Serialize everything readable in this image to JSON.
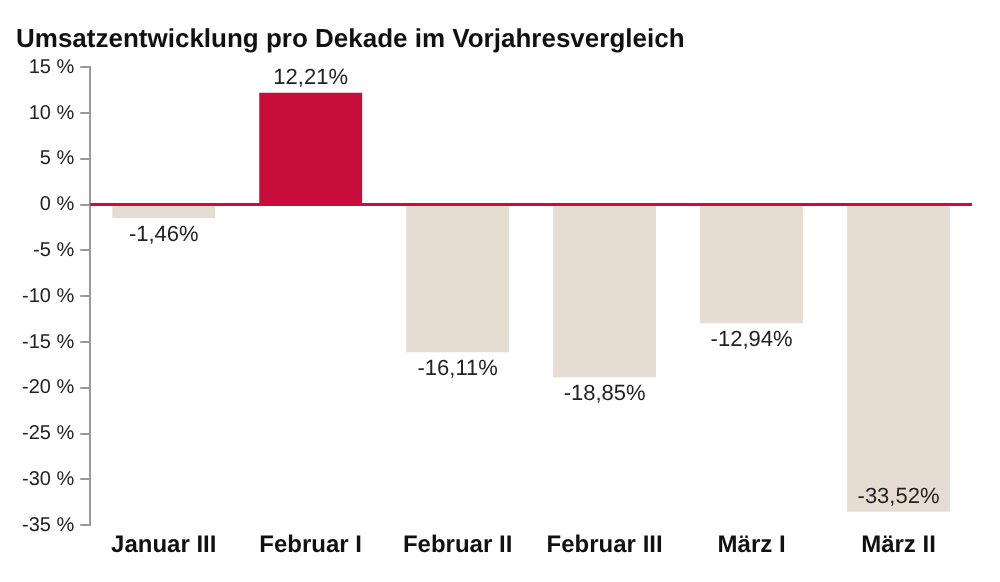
{
  "chart_data": {
    "type": "bar",
    "title": "Umsatzentwicklung pro Dekade im Vorjahresvergleich",
    "categories": [
      "Januar III",
      "Februar I",
      "Februar II",
      "Februar III",
      "März I",
      "März II"
    ],
    "values": [
      -1.46,
      12.21,
      -16.11,
      -18.85,
      -12.94,
      -33.52
    ],
    "colors": [
      "#e6ddd2",
      "#c70d3a",
      "#e6ddd2",
      "#e6ddd2",
      "#e6ddd2",
      "#e6ddd2"
    ],
    "value_labels": [
      "-1,46%",
      "12,21%",
      "-16,11%",
      "-18,85%",
      "-12,94%",
      "-33,52%"
    ],
    "ylim": [
      -35,
      15
    ],
    "yticks": [
      {
        "value": 15,
        "label": "15 %"
      },
      {
        "value": 10,
        "label": "10 %"
      },
      {
        "value": 5,
        "label": "5 %"
      },
      {
        "value": 0,
        "label": "0 %"
      },
      {
        "value": -5,
        "label": "-5 %"
      },
      {
        "value": -10,
        "label": "-10 %"
      },
      {
        "value": -15,
        "label": "-15 %"
      },
      {
        "value": -20,
        "label": "-20 %"
      },
      {
        "value": -25,
        "label": "-25 %"
      },
      {
        "value": -30,
        "label": "-30 %"
      },
      {
        "value": -35,
        "label": "-35 %"
      }
    ],
    "ref_lines": [
      {
        "axis": "y",
        "value": 0,
        "color": "#c70d3a"
      }
    ],
    "grid": false,
    "legend": false
  }
}
